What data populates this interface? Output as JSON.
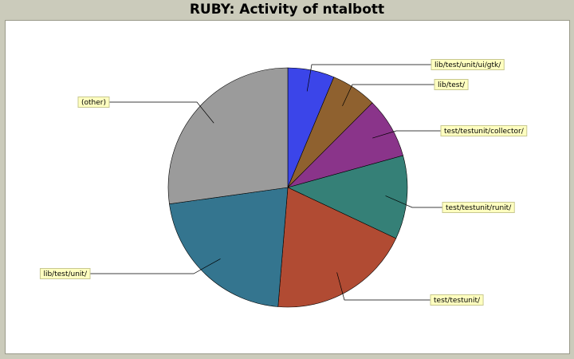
{
  "chart_data": {
    "type": "pie",
    "title": "RUBY: Activity of ntalbott",
    "slices": [
      {
        "label": "lib/test/unit/ui/gtk/",
        "value": 6.3,
        "color": "#3b45e9"
      },
      {
        "label": "lib/test/",
        "value": 6.2,
        "color": "#8f612f"
      },
      {
        "label": "test/testunit/collector/",
        "value": 8.2,
        "color": "#8a348a"
      },
      {
        "label": "test/testunit/runit/",
        "value": 11.3,
        "color": "#358077"
      },
      {
        "label": "test/testunit/",
        "value": 19.3,
        "color": "#b14b33"
      },
      {
        "label": "lib/test/unit/",
        "value": 21.5,
        "color": "#34758f"
      },
      {
        "label": "(other)",
        "value": 27.2,
        "color": "#9b9b9b"
      }
    ]
  }
}
